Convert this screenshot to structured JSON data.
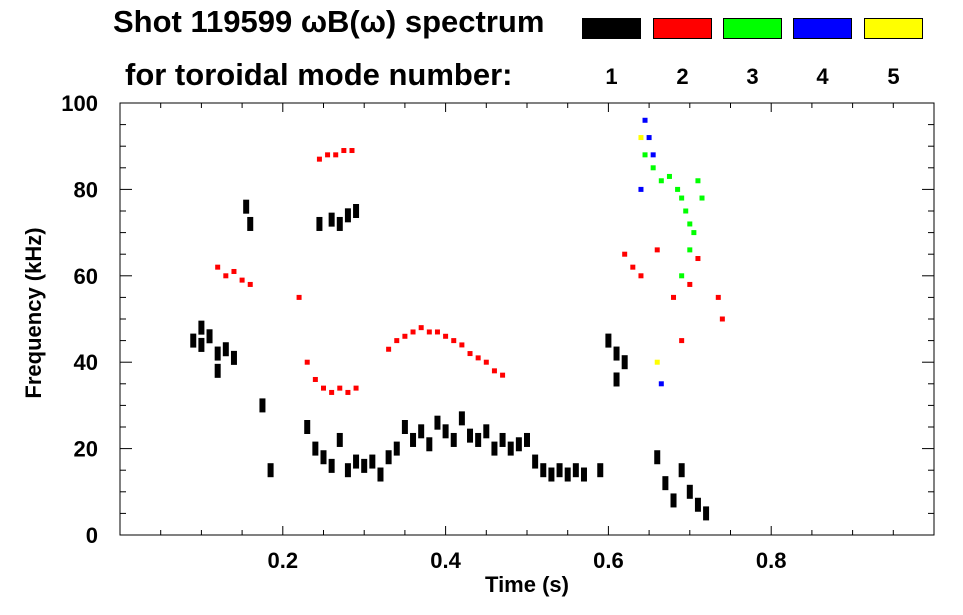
{
  "legend": {
    "title_line1": "Shot 119599 ωB(ω) spectrum",
    "title_line2": "for toroidal mode number:",
    "entries": [
      {
        "label": "1",
        "color": "#000000"
      },
      {
        "label": "2",
        "color": "#ff0000"
      },
      {
        "label": "3",
        "color": "#00ff00"
      },
      {
        "label": "4",
        "color": "#0000ff"
      },
      {
        "label": "5",
        "color": "#ffff00"
      }
    ]
  },
  "chart_data": {
    "type": "scatter",
    "title": "Shot 119599 ωB(ω) spectrum for toroidal mode number:",
    "xlabel": "Time (s)",
    "ylabel": "Frequency (kHz)",
    "xlim": [
      0.0,
      1.0
    ],
    "ylim": [
      0,
      100
    ],
    "x_ticks": [
      {
        "value": 0.2,
        "label": "0.2"
      },
      {
        "value": 0.4,
        "label": "0.4"
      },
      {
        "value": 0.6,
        "label": "0.6"
      },
      {
        "value": 0.8,
        "label": "0.8"
      }
    ],
    "y_ticks": [
      {
        "value": 0,
        "label": "0"
      },
      {
        "value": 20,
        "label": "20"
      },
      {
        "value": 40,
        "label": "40"
      },
      {
        "value": 60,
        "label": "60"
      },
      {
        "value": 80,
        "label": "80"
      },
      {
        "value": 100,
        "label": "100"
      }
    ],
    "series": [
      {
        "name": "n=1",
        "color": "#000000",
        "points": [
          [
            0.09,
            45
          ],
          [
            0.1,
            44
          ],
          [
            0.11,
            46
          ],
          [
            0.12,
            42
          ],
          [
            0.13,
            43
          ],
          [
            0.14,
            41
          ],
          [
            0.12,
            38
          ],
          [
            0.1,
            48
          ],
          [
            0.155,
            76
          ],
          [
            0.16,
            72
          ],
          [
            0.175,
            30
          ],
          [
            0.185,
            15
          ],
          [
            0.245,
            72
          ],
          [
            0.26,
            73
          ],
          [
            0.27,
            72
          ],
          [
            0.28,
            74
          ],
          [
            0.29,
            75
          ],
          [
            0.23,
            25
          ],
          [
            0.24,
            20
          ],
          [
            0.25,
            18
          ],
          [
            0.26,
            16
          ],
          [
            0.27,
            22
          ],
          [
            0.28,
            15
          ],
          [
            0.29,
            17
          ],
          [
            0.3,
            16
          ],
          [
            0.31,
            17
          ],
          [
            0.32,
            14
          ],
          [
            0.33,
            18
          ],
          [
            0.34,
            20
          ],
          [
            0.35,
            25
          ],
          [
            0.36,
            22
          ],
          [
            0.37,
            24
          ],
          [
            0.38,
            21
          ],
          [
            0.39,
            26
          ],
          [
            0.4,
            24
          ],
          [
            0.41,
            22
          ],
          [
            0.42,
            27
          ],
          [
            0.43,
            23
          ],
          [
            0.44,
            22
          ],
          [
            0.45,
            24
          ],
          [
            0.46,
            20
          ],
          [
            0.47,
            22
          ],
          [
            0.48,
            20
          ],
          [
            0.49,
            21
          ],
          [
            0.5,
            22
          ],
          [
            0.51,
            17
          ],
          [
            0.52,
            15
          ],
          [
            0.53,
            14
          ],
          [
            0.54,
            15
          ],
          [
            0.55,
            14
          ],
          [
            0.56,
            15
          ],
          [
            0.57,
            14
          ],
          [
            0.59,
            15
          ],
          [
            0.6,
            45
          ],
          [
            0.61,
            42
          ],
          [
            0.62,
            40
          ],
          [
            0.61,
            36
          ],
          [
            0.66,
            18
          ],
          [
            0.67,
            12
          ],
          [
            0.68,
            8
          ],
          [
            0.69,
            15
          ],
          [
            0.7,
            10
          ],
          [
            0.71,
            7
          ],
          [
            0.72,
            5
          ]
        ]
      },
      {
        "name": "n=2",
        "color": "#ff0000",
        "points": [
          [
            0.12,
            62
          ],
          [
            0.13,
            60
          ],
          [
            0.14,
            61
          ],
          [
            0.15,
            59
          ],
          [
            0.16,
            58
          ],
          [
            0.245,
            87
          ],
          [
            0.255,
            88
          ],
          [
            0.265,
            88
          ],
          [
            0.275,
            89
          ],
          [
            0.285,
            89
          ],
          [
            0.22,
            55
          ],
          [
            0.23,
            40
          ],
          [
            0.24,
            36
          ],
          [
            0.25,
            34
          ],
          [
            0.26,
            33
          ],
          [
            0.27,
            34
          ],
          [
            0.28,
            33
          ],
          [
            0.29,
            34
          ],
          [
            0.33,
            43
          ],
          [
            0.34,
            45
          ],
          [
            0.35,
            46
          ],
          [
            0.36,
            47
          ],
          [
            0.37,
            48
          ],
          [
            0.38,
            47
          ],
          [
            0.39,
            47
          ],
          [
            0.4,
            46
          ],
          [
            0.41,
            45
          ],
          [
            0.42,
            44
          ],
          [
            0.43,
            42
          ],
          [
            0.44,
            41
          ],
          [
            0.45,
            40
          ],
          [
            0.46,
            38
          ],
          [
            0.47,
            37
          ],
          [
            0.62,
            65
          ],
          [
            0.63,
            62
          ],
          [
            0.64,
            60
          ],
          [
            0.66,
            66
          ],
          [
            0.68,
            55
          ],
          [
            0.69,
            45
          ],
          [
            0.7,
            58
          ],
          [
            0.71,
            64
          ],
          [
            0.735,
            55
          ],
          [
            0.74,
            50
          ]
        ]
      },
      {
        "name": "n=3",
        "color": "#00ff00",
        "points": [
          [
            0.645,
            88
          ],
          [
            0.655,
            85
          ],
          [
            0.665,
            82
          ],
          [
            0.675,
            83
          ],
          [
            0.685,
            80
          ],
          [
            0.69,
            78
          ],
          [
            0.695,
            75
          ],
          [
            0.7,
            72
          ],
          [
            0.705,
            70
          ],
          [
            0.7,
            66
          ],
          [
            0.69,
            60
          ],
          [
            0.715,
            78
          ],
          [
            0.71,
            82
          ]
        ]
      },
      {
        "name": "n=4",
        "color": "#0000ff",
        "points": [
          [
            0.645,
            96
          ],
          [
            0.65,
            92
          ],
          [
            0.655,
            88
          ],
          [
            0.64,
            80
          ],
          [
            0.665,
            35
          ]
        ]
      },
      {
        "name": "n=5",
        "color": "#ffff00",
        "points": [
          [
            0.64,
            92
          ],
          [
            0.66,
            40
          ]
        ]
      }
    ]
  }
}
